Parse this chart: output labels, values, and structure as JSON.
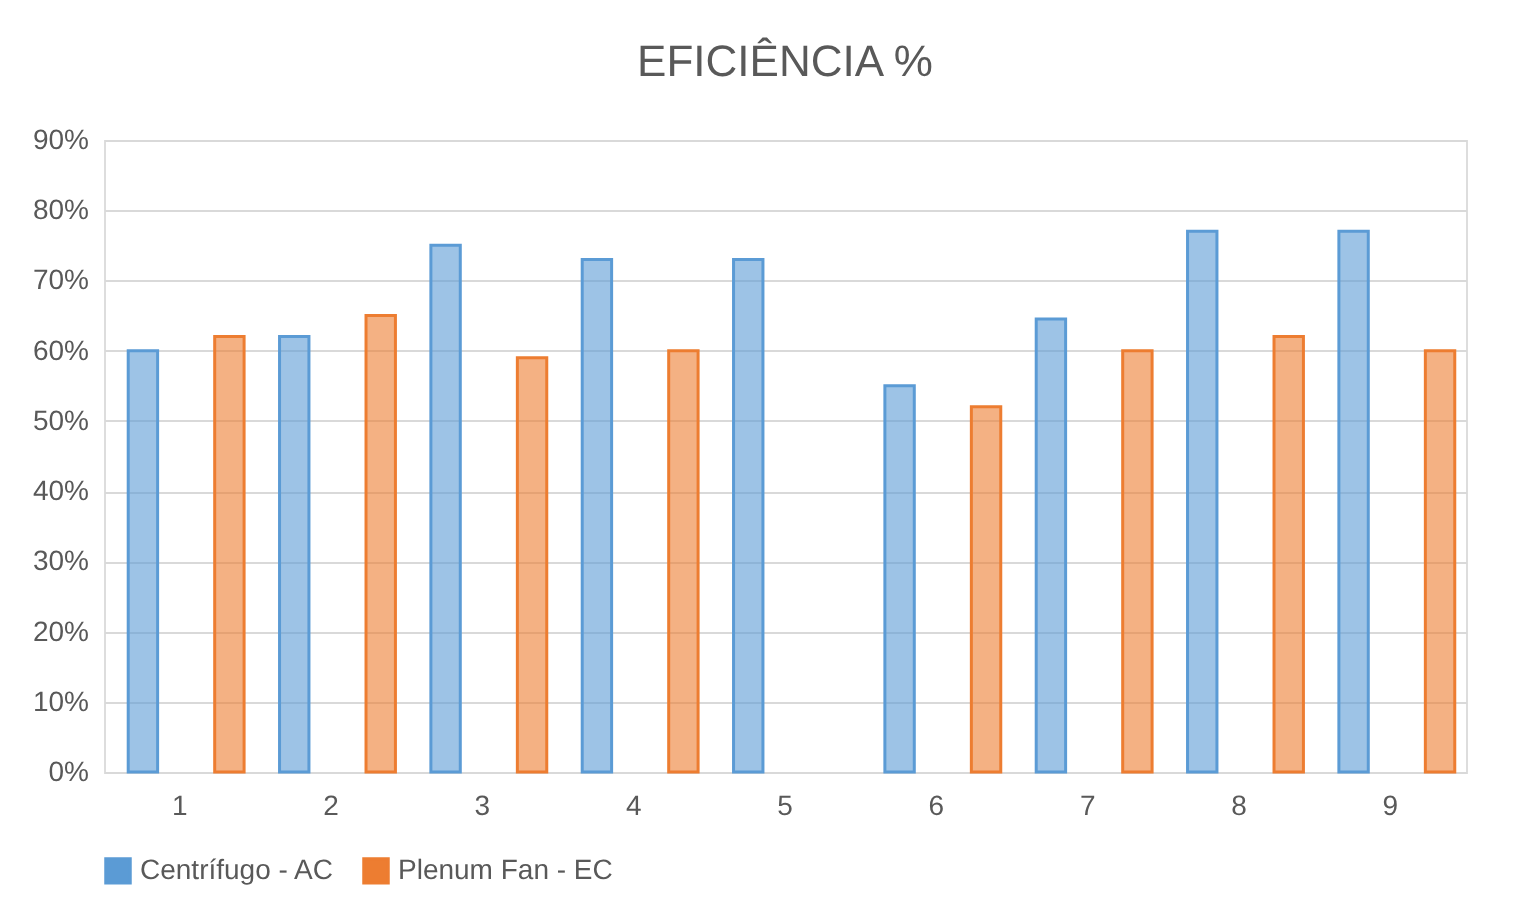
{
  "chart_data": {
    "type": "bar",
    "title": "EFICIÊNCIA  %",
    "categories": [
      "1",
      "2",
      "3",
      "4",
      "5",
      "6",
      "7",
      "8",
      "9"
    ],
    "series": [
      {
        "name": "Centrífugo - AC",
        "color": "#5b9bd5",
        "values": [
          60,
          62,
          75,
          73,
          73,
          55,
          64.5,
          77,
          77
        ]
      },
      {
        "name": "Plenum Fan - EC",
        "color": "#ed7d31",
        "values": [
          62,
          65,
          59,
          60,
          null,
          52,
          60,
          62,
          60
        ]
      }
    ],
    "ylim": [
      0,
      90
    ],
    "yticks": [
      {
        "value": 0,
        "label": "0%"
      },
      {
        "value": 10,
        "label": "10%"
      },
      {
        "value": 20,
        "label": "20%"
      },
      {
        "value": 30,
        "label": "30%"
      },
      {
        "value": 40,
        "label": "40%"
      },
      {
        "value": 50,
        "label": "50%"
      },
      {
        "value": 60,
        "label": "60%"
      },
      {
        "value": 70,
        "label": "70%"
      },
      {
        "value": 80,
        "label": "80%"
      },
      {
        "value": 90,
        "label": "90%"
      }
    ],
    "grid": "y",
    "legend": "bottom"
  }
}
